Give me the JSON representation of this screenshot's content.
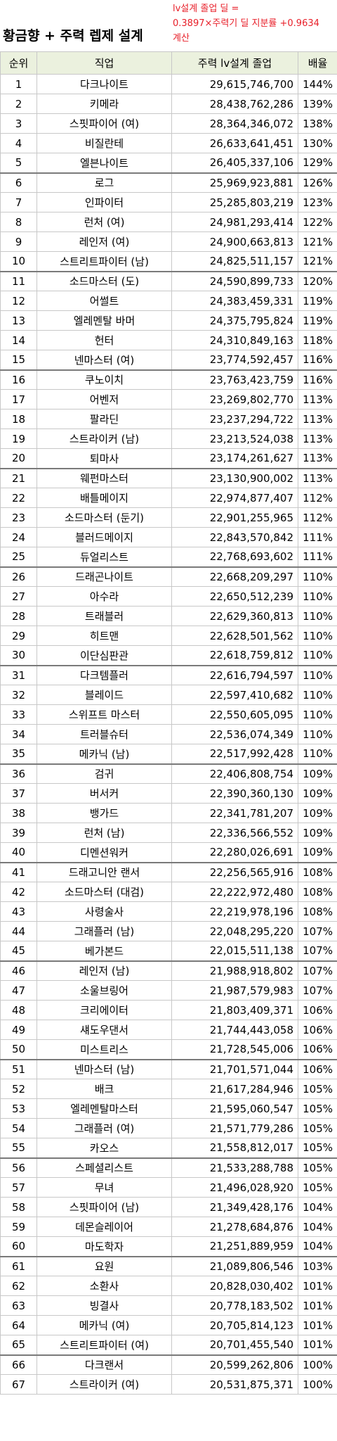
{
  "header": {
    "title": "황금향 + 주력 렙제 설계",
    "note": [
      "lv설계 졸업 딜 =",
      "0.3897×주력기 딜 지분률 +0.9634",
      "계산"
    ]
  },
  "table": {
    "columns": [
      "순위",
      "직업",
      "주력 lv설계 졸업",
      "배율"
    ],
    "rows": [
      [
        "1",
        "다크나이트",
        "29,615,746,700",
        "144%"
      ],
      [
        "2",
        "키메라",
        "28,438,762,286",
        "139%"
      ],
      [
        "3",
        "스핏파이어 (여)",
        "28,364,346,072",
        "138%"
      ],
      [
        "4",
        "비질란테",
        "26,633,641,451",
        "130%"
      ],
      [
        "5",
        "엘븐나이트",
        "26,405,337,106",
        "129%"
      ],
      [
        "6",
        "로그",
        "25,969,923,881",
        "126%"
      ],
      [
        "7",
        "인파이터",
        "25,285,803,219",
        "123%"
      ],
      [
        "8",
        "런처 (여)",
        "24,981,293,414",
        "122%"
      ],
      [
        "9",
        "레인저 (여)",
        "24,900,663,813",
        "121%"
      ],
      [
        "10",
        "스트리트파이터 (남)",
        "24,825,511,157",
        "121%"
      ],
      [
        "11",
        "소드마스터 (도)",
        "24,590,899,733",
        "120%"
      ],
      [
        "12",
        "어썰트",
        "24,383,459,331",
        "119%"
      ],
      [
        "13",
        "엘레멘탈 바머",
        "24,375,795,824",
        "119%"
      ],
      [
        "14",
        "헌터",
        "24,310,849,163",
        "118%"
      ],
      [
        "15",
        "넨마스터 (여)",
        "23,774,592,457",
        "116%"
      ],
      [
        "16",
        "쿠노이치",
        "23,763,423,759",
        "116%"
      ],
      [
        "17",
        "어벤저",
        "23,269,802,770",
        "113%"
      ],
      [
        "18",
        "팔라딘",
        "23,237,294,722",
        "113%"
      ],
      [
        "19",
        "스트라이커 (남)",
        "23,213,524,038",
        "113%"
      ],
      [
        "20",
        "퇴마사",
        "23,174,261,627",
        "113%"
      ],
      [
        "21",
        "웨펀마스터",
        "23,130,900,002",
        "113%"
      ],
      [
        "22",
        "배틀메이지",
        "22,974,877,407",
        "112%"
      ],
      [
        "23",
        "소드마스터 (둔기)",
        "22,901,255,965",
        "112%"
      ],
      [
        "24",
        "블러드메이지",
        "22,843,570,842",
        "111%"
      ],
      [
        "25",
        "듀얼리스트",
        "22,768,693,602",
        "111%"
      ],
      [
        "26",
        "드래곤나이트",
        "22,668,209,297",
        "110%"
      ],
      [
        "27",
        "아수라",
        "22,650,512,239",
        "110%"
      ],
      [
        "28",
        "트래블러",
        "22,629,360,813",
        "110%"
      ],
      [
        "29",
        "히트맨",
        "22,628,501,562",
        "110%"
      ],
      [
        "30",
        "이단심판관",
        "22,618,759,812",
        "110%"
      ],
      [
        "31",
        "다크템플러",
        "22,616,794,597",
        "110%"
      ],
      [
        "32",
        "블레이드",
        "22,597,410,682",
        "110%"
      ],
      [
        "33",
        "스위프트 마스터",
        "22,550,605,095",
        "110%"
      ],
      [
        "34",
        "트러블슈터",
        "22,536,074,349",
        "110%"
      ],
      [
        "35",
        "메카닉 (남)",
        "22,517,992,428",
        "110%"
      ],
      [
        "36",
        "검귀",
        "22,406,808,754",
        "109%"
      ],
      [
        "37",
        "버서커",
        "22,390,360,130",
        "109%"
      ],
      [
        "38",
        "뱅가드",
        "22,341,781,207",
        "109%"
      ],
      [
        "39",
        "런처 (남)",
        "22,336,566,552",
        "109%"
      ],
      [
        "40",
        "디멘션워커",
        "22,280,026,691",
        "109%"
      ],
      [
        "41",
        "드래고니안 랜서",
        "22,256,565,916",
        "108%"
      ],
      [
        "42",
        "소드마스터 (대검)",
        "22,222,972,480",
        "108%"
      ],
      [
        "43",
        "사령술사",
        "22,219,978,196",
        "108%"
      ],
      [
        "44",
        "그래플러 (남)",
        "22,048,295,220",
        "107%"
      ],
      [
        "45",
        "베가본드",
        "22,015,511,138",
        "107%"
      ],
      [
        "46",
        "레인저 (남)",
        "21,988,918,802",
        "107%"
      ],
      [
        "47",
        "소울브링어",
        "21,987,579,983",
        "107%"
      ],
      [
        "48",
        "크리에이터",
        "21,803,409,371",
        "106%"
      ],
      [
        "49",
        "섀도우댄서",
        "21,744,443,058",
        "106%"
      ],
      [
        "50",
        "미스트리스",
        "21,728,545,006",
        "106%"
      ],
      [
        "51",
        "넨마스터 (남)",
        "21,701,571,044",
        "106%"
      ],
      [
        "52",
        "배크",
        "21,617,284,946",
        "105%"
      ],
      [
        "53",
        "엘레멘탈마스터",
        "21,595,060,547",
        "105%"
      ],
      [
        "54",
        "그래플러 (여)",
        "21,571,779,286",
        "105%"
      ],
      [
        "55",
        "카오스",
        "21,558,812,017",
        "105%"
      ],
      [
        "56",
        "스페셜리스트",
        "21,533,288,788",
        "105%"
      ],
      [
        "57",
        "무녀",
        "21,496,028,920",
        "105%"
      ],
      [
        "58",
        "스핏파이어 (남)",
        "21,349,428,176",
        "104%"
      ],
      [
        "59",
        "데몬슬레이어",
        "21,278,684,876",
        "104%"
      ],
      [
        "60",
        "마도학자",
        "21,251,889,959",
        "104%"
      ],
      [
        "61",
        "요원",
        "21,089,806,546",
        "103%"
      ],
      [
        "62",
        "소환사",
        "20,828,030,402",
        "101%"
      ],
      [
        "63",
        "빙결사",
        "20,778,183,502",
        "101%"
      ],
      [
        "64",
        "메카닉 (여)",
        "20,705,814,123",
        "101%"
      ],
      [
        "65",
        "스트리트파이터 (여)",
        "20,701,455,540",
        "101%"
      ],
      [
        "66",
        "다크랜서",
        "20,599,262,806",
        "100%"
      ],
      [
        "67",
        "스트라이커 (여)",
        "20,531,875,371",
        "100%"
      ]
    ]
  }
}
